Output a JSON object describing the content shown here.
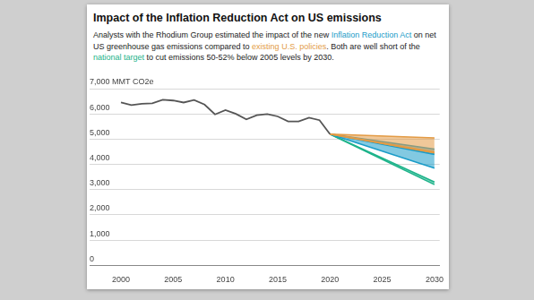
{
  "chart_data": {
    "type": "line",
    "title": "Impact of the Inflation Reduction Act on US emissions",
    "subtitle": "Analysts with the Rhodium Group estimated the impact of the new Inflation Reduction Act on net US greenhouse gas emissions compared to existing U.S. policies. Both are well short of the national target to cut emissions 50-52% below 2005 levels by 2030.",
    "xlim": [
      1997,
      2030.5
    ],
    "xticks": [
      2000,
      2005,
      2010,
      2015,
      2020,
      2025,
      2030
    ],
    "ylim": [
      0,
      7000
    ],
    "yticks": [
      0,
      {
        "value": 1000,
        "label": "1,000"
      },
      {
        "value": 2000,
        "label": "2,000"
      },
      {
        "value": 3000,
        "label": "3,000"
      },
      {
        "value": 4000,
        "label": "4,000"
      },
      {
        "value": 5000,
        "label": "5,000"
      },
      {
        "value": 6000,
        "label": "6,000"
      },
      {
        "value": 7000,
        "label": "7,000 MMT CO2e"
      }
    ],
    "grid": true,
    "series": [
      {
        "color": "#555555",
        "x": [
          2000,
          2001,
          2002,
          2003,
          2004,
          2005,
          2006,
          2007,
          2008,
          2009,
          2010,
          2011,
          2012,
          2013,
          2014,
          2015,
          2016,
          2017,
          2018,
          2019,
          2020
        ],
        "values": [
          6450,
          6350,
          6400,
          6420,
          6560,
          6530,
          6450,
          6550,
          6370,
          5980,
          6150,
          6000,
          5780,
          5950,
          5990,
          5900,
          5700,
          5700,
          5850,
          5750,
          5200
        ]
      },
      {
        "name": "existing U.S. policies",
        "color": "#e39b45",
        "x": [
          2020,
          2030
        ],
        "values": [
          5200,
          4480
        ],
        "low": [
          5200,
          4450
        ],
        "high": [
          5200,
          5050
        ]
      },
      {
        "name": "Inflation Reduction Act",
        "color": "#1b9cc8",
        "x": [
          2020,
          2030
        ],
        "values": [
          5200,
          4400
        ],
        "low": [
          5200,
          3850
        ],
        "high": [
          5200,
          4600
        ]
      },
      {
        "name": "national target",
        "color": "#1db38a",
        "x": [
          2020,
          2030
        ],
        "low": [
          5200,
          3200
        ],
        "high": [
          5200,
          3300
        ]
      }
    ]
  }
}
